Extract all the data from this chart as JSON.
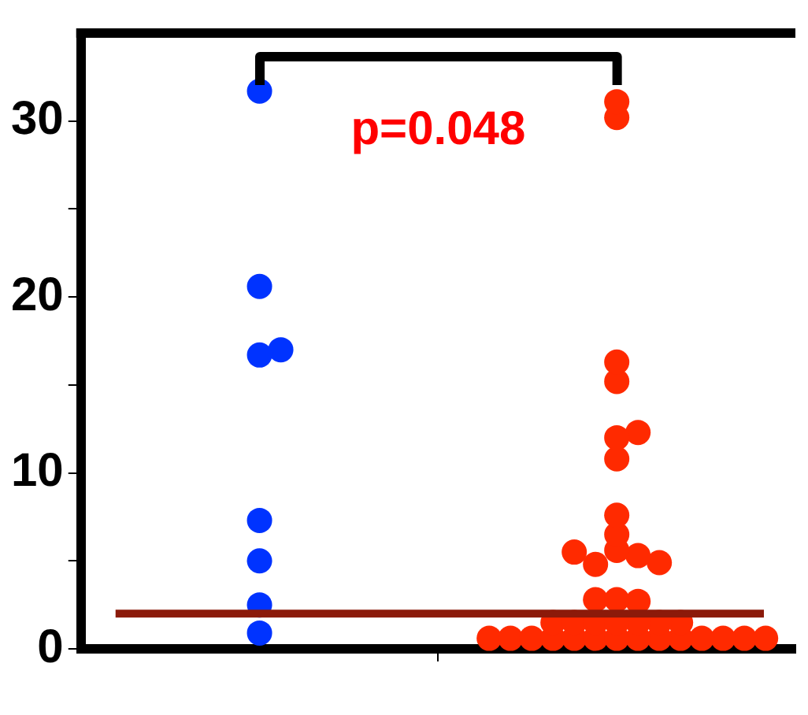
{
  "chart_data": {
    "type": "scatter",
    "categories": [
      null,
      null
    ],
    "ylim": [
      0,
      35
    ],
    "yticks": [
      0,
      {
        "value": 5,
        "label": null
      },
      10,
      {
        "value": 15,
        "label": null
      },
      20,
      {
        "value": 25,
        "label": null
      },
      30
    ],
    "grid": false,
    "legend": false,
    "marker": "circle",
    "series": [
      {
        "colors": [
          "#0033ff",
          "#ff2a00"
        ],
        "values": [
          31.7,
          31.1
        ]
      },
      {
        "colors": [
          "#0033ff",
          "#ff2a00"
        ],
        "values": [
          20.6,
          30.2
        ]
      },
      {
        "colors": [
          "#0033ff",
          "#ff2a00"
        ],
        "values": [
          16.7,
          16.3
        ]
      },
      {
        "colors": [
          "#0033ff",
          "#ff2a00"
        ],
        "values": [
          17.0,
          15.2
        ]
      },
      {
        "colors": [
          "#0033ff",
          "#ff2a00"
        ],
        "values": [
          7.3,
          12.0
        ]
      },
      {
        "colors": [
          "#0033ff",
          "#ff2a00"
        ],
        "values": [
          5.0,
          12.3
        ]
      },
      {
        "colors": [
          "#0033ff",
          "#ff2a00"
        ],
        "values": [
          2.5,
          10.8
        ]
      },
      {
        "colors": [
          "#0033ff",
          "#ff2a00"
        ],
        "values": [
          0.9,
          7.6
        ]
      },
      {
        "color": "#ff2a00",
        "values": [
          null,
          6.5
        ]
      },
      {
        "color": "#ff2a00",
        "values": [
          null,
          5.6
        ]
      },
      {
        "color": "#ff2a00",
        "values": [
          null,
          5.3
        ]
      },
      {
        "color": "#ff2a00",
        "values": [
          null,
          4.8
        ]
      },
      {
        "color": "#ff2a00",
        "values": [
          null,
          4.9
        ]
      },
      {
        "color": "#ff2a00",
        "values": [
          null,
          5.5
        ]
      },
      {
        "color": "#ff2a00",
        "values": [
          null,
          2.8
        ]
      },
      {
        "color": "#ff2a00",
        "values": [
          null,
          2.7
        ]
      },
      {
        "color": "#ff2a00",
        "values": [
          null,
          2.8
        ]
      },
      {
        "color": "#ff2a00",
        "values": [
          null,
          1.5
        ]
      },
      {
        "color": "#ff2a00",
        "values": [
          null,
          1.5
        ]
      },
      {
        "color": "#ff2a00",
        "values": [
          null,
          1.5
        ]
      },
      {
        "color": "#ff2a00",
        "values": [
          null,
          1.5
        ]
      },
      {
        "color": "#ff2a00",
        "values": [
          null,
          1.5
        ]
      },
      {
        "color": "#ff2a00",
        "values": [
          null,
          1.5
        ]
      },
      {
        "color": "#ff2a00",
        "values": [
          null,
          1.5
        ]
      },
      {
        "color": "#ff2a00",
        "values": [
          null,
          0.6
        ]
      },
      {
        "color": "#ff2a00",
        "values": [
          null,
          0.6
        ]
      },
      {
        "color": "#ff2a00",
        "values": [
          null,
          0.6
        ]
      },
      {
        "color": "#ff2a00",
        "values": [
          null,
          0.6
        ]
      },
      {
        "color": "#ff2a00",
        "values": [
          null,
          0.6
        ]
      },
      {
        "color": "#ff2a00",
        "values": [
          null,
          0.6
        ]
      },
      {
        "color": "#ff2a00",
        "values": [
          null,
          0.6
        ]
      },
      {
        "color": "#ff2a00",
        "values": [
          null,
          0.6
        ]
      },
      {
        "color": "#ff2a00",
        "values": [
          null,
          0.6
        ]
      },
      {
        "color": "#ff2a00",
        "values": [
          null,
          0.6
        ]
      },
      {
        "color": "#ff2a00",
        "values": [
          null,
          0.6
        ]
      },
      {
        "color": "#ff2a00",
        "values": [
          null,
          0.6
        ]
      },
      {
        "color": "#ff2a00",
        "values": [
          null,
          0.6
        ]
      },
      {
        "color": "#ff2a00",
        "values": [
          null,
          0.6
        ]
      }
    ],
    "ref_lines": [
      {
        "axis": "y",
        "value": 2,
        "color": "#8b1a0a"
      }
    ],
    "annotations": [
      "p=0.048"
    ]
  }
}
